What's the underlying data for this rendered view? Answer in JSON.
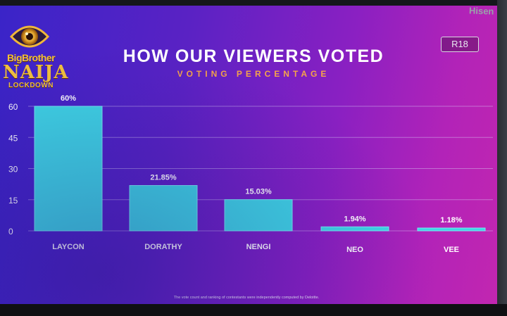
{
  "header": {
    "logo_line1": "BigBrother",
    "logo_line2": "NAIJA",
    "logo_line3": "LOCKDOWN",
    "rating": "R18"
  },
  "footnote": "The vote count and ranking of contestants were independently computed by Deloitte.",
  "tv_brand": "Hisen",
  "colors": {
    "bar": "#3fd7e6",
    "bar_edge": "#7aeaf3",
    "title": "#ffffff",
    "subtitle": "#f5a44a",
    "logo": "#f3c23c",
    "grid": "#d9cdf5"
  },
  "chart_data": {
    "type": "bar",
    "title": "HOW OUR VIEWERS VOTED",
    "subtitle": "VOTING PERCENTAGE",
    "xlabel": "",
    "ylabel": "",
    "ylim": [
      0,
      60
    ],
    "yticks": [
      0,
      15,
      30,
      45,
      60
    ],
    "grid": true,
    "categories": [
      "LAYCON",
      "DORATHY",
      "NENGI",
      "NEO",
      "VEE"
    ],
    "values": [
      60,
      21.85,
      15.03,
      1.94,
      1.18
    ],
    "labels": [
      "60%",
      "21.85%",
      "15.03%",
      "1.94%",
      "1.18%"
    ]
  }
}
